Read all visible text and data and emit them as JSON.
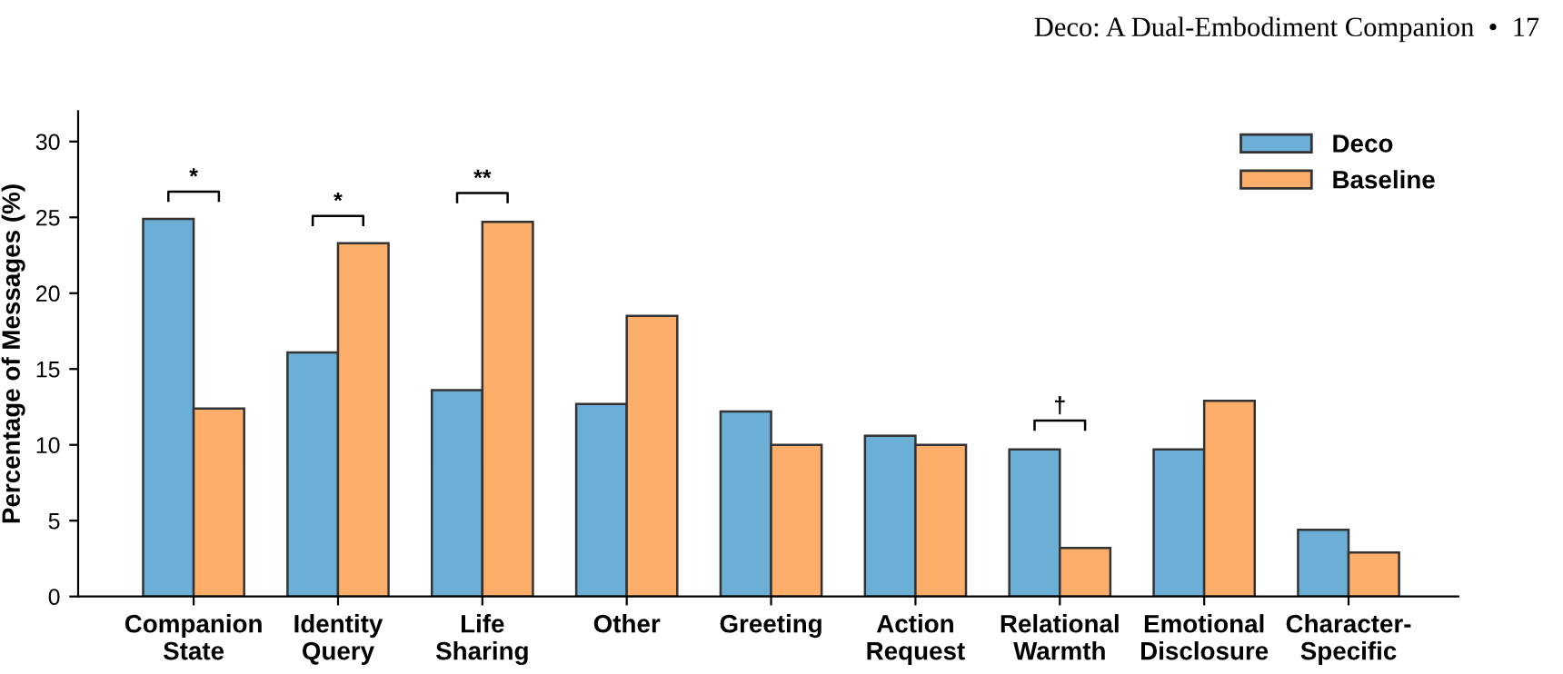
{
  "chart_data": {
    "type": "bar",
    "ylabel": "Percentage of Messages (%)",
    "categories": [
      "Companion\nState",
      "Identity\nQuery",
      "Life\nSharing",
      "Other",
      "Greeting",
      "Action\nRequest",
      "Relational\nWarmth",
      "Emotional\nDisclosure",
      "Character-\nSpecific"
    ],
    "series": [
      {
        "name": "Deco",
        "color": "#6baed6",
        "values": [
          24.9,
          16.1,
          13.6,
          12.7,
          12.2,
          10.6,
          9.7,
          9.7,
          4.4
        ]
      },
      {
        "name": "Baseline",
        "color": "#fdae6b",
        "values": [
          12.4,
          23.3,
          24.7,
          18.5,
          10.0,
          10.0,
          3.2,
          12.9,
          2.9
        ]
      }
    ],
    "ylim": [
      0,
      32
    ],
    "yticks": [
      0,
      5,
      10,
      15,
      20,
      25,
      30
    ],
    "grid": false,
    "legend": "top right",
    "annotations": [
      "*",
      "*",
      "**",
      "†",
      "Deco: A Dual-Embodiment Companion  •  17"
    ]
  }
}
